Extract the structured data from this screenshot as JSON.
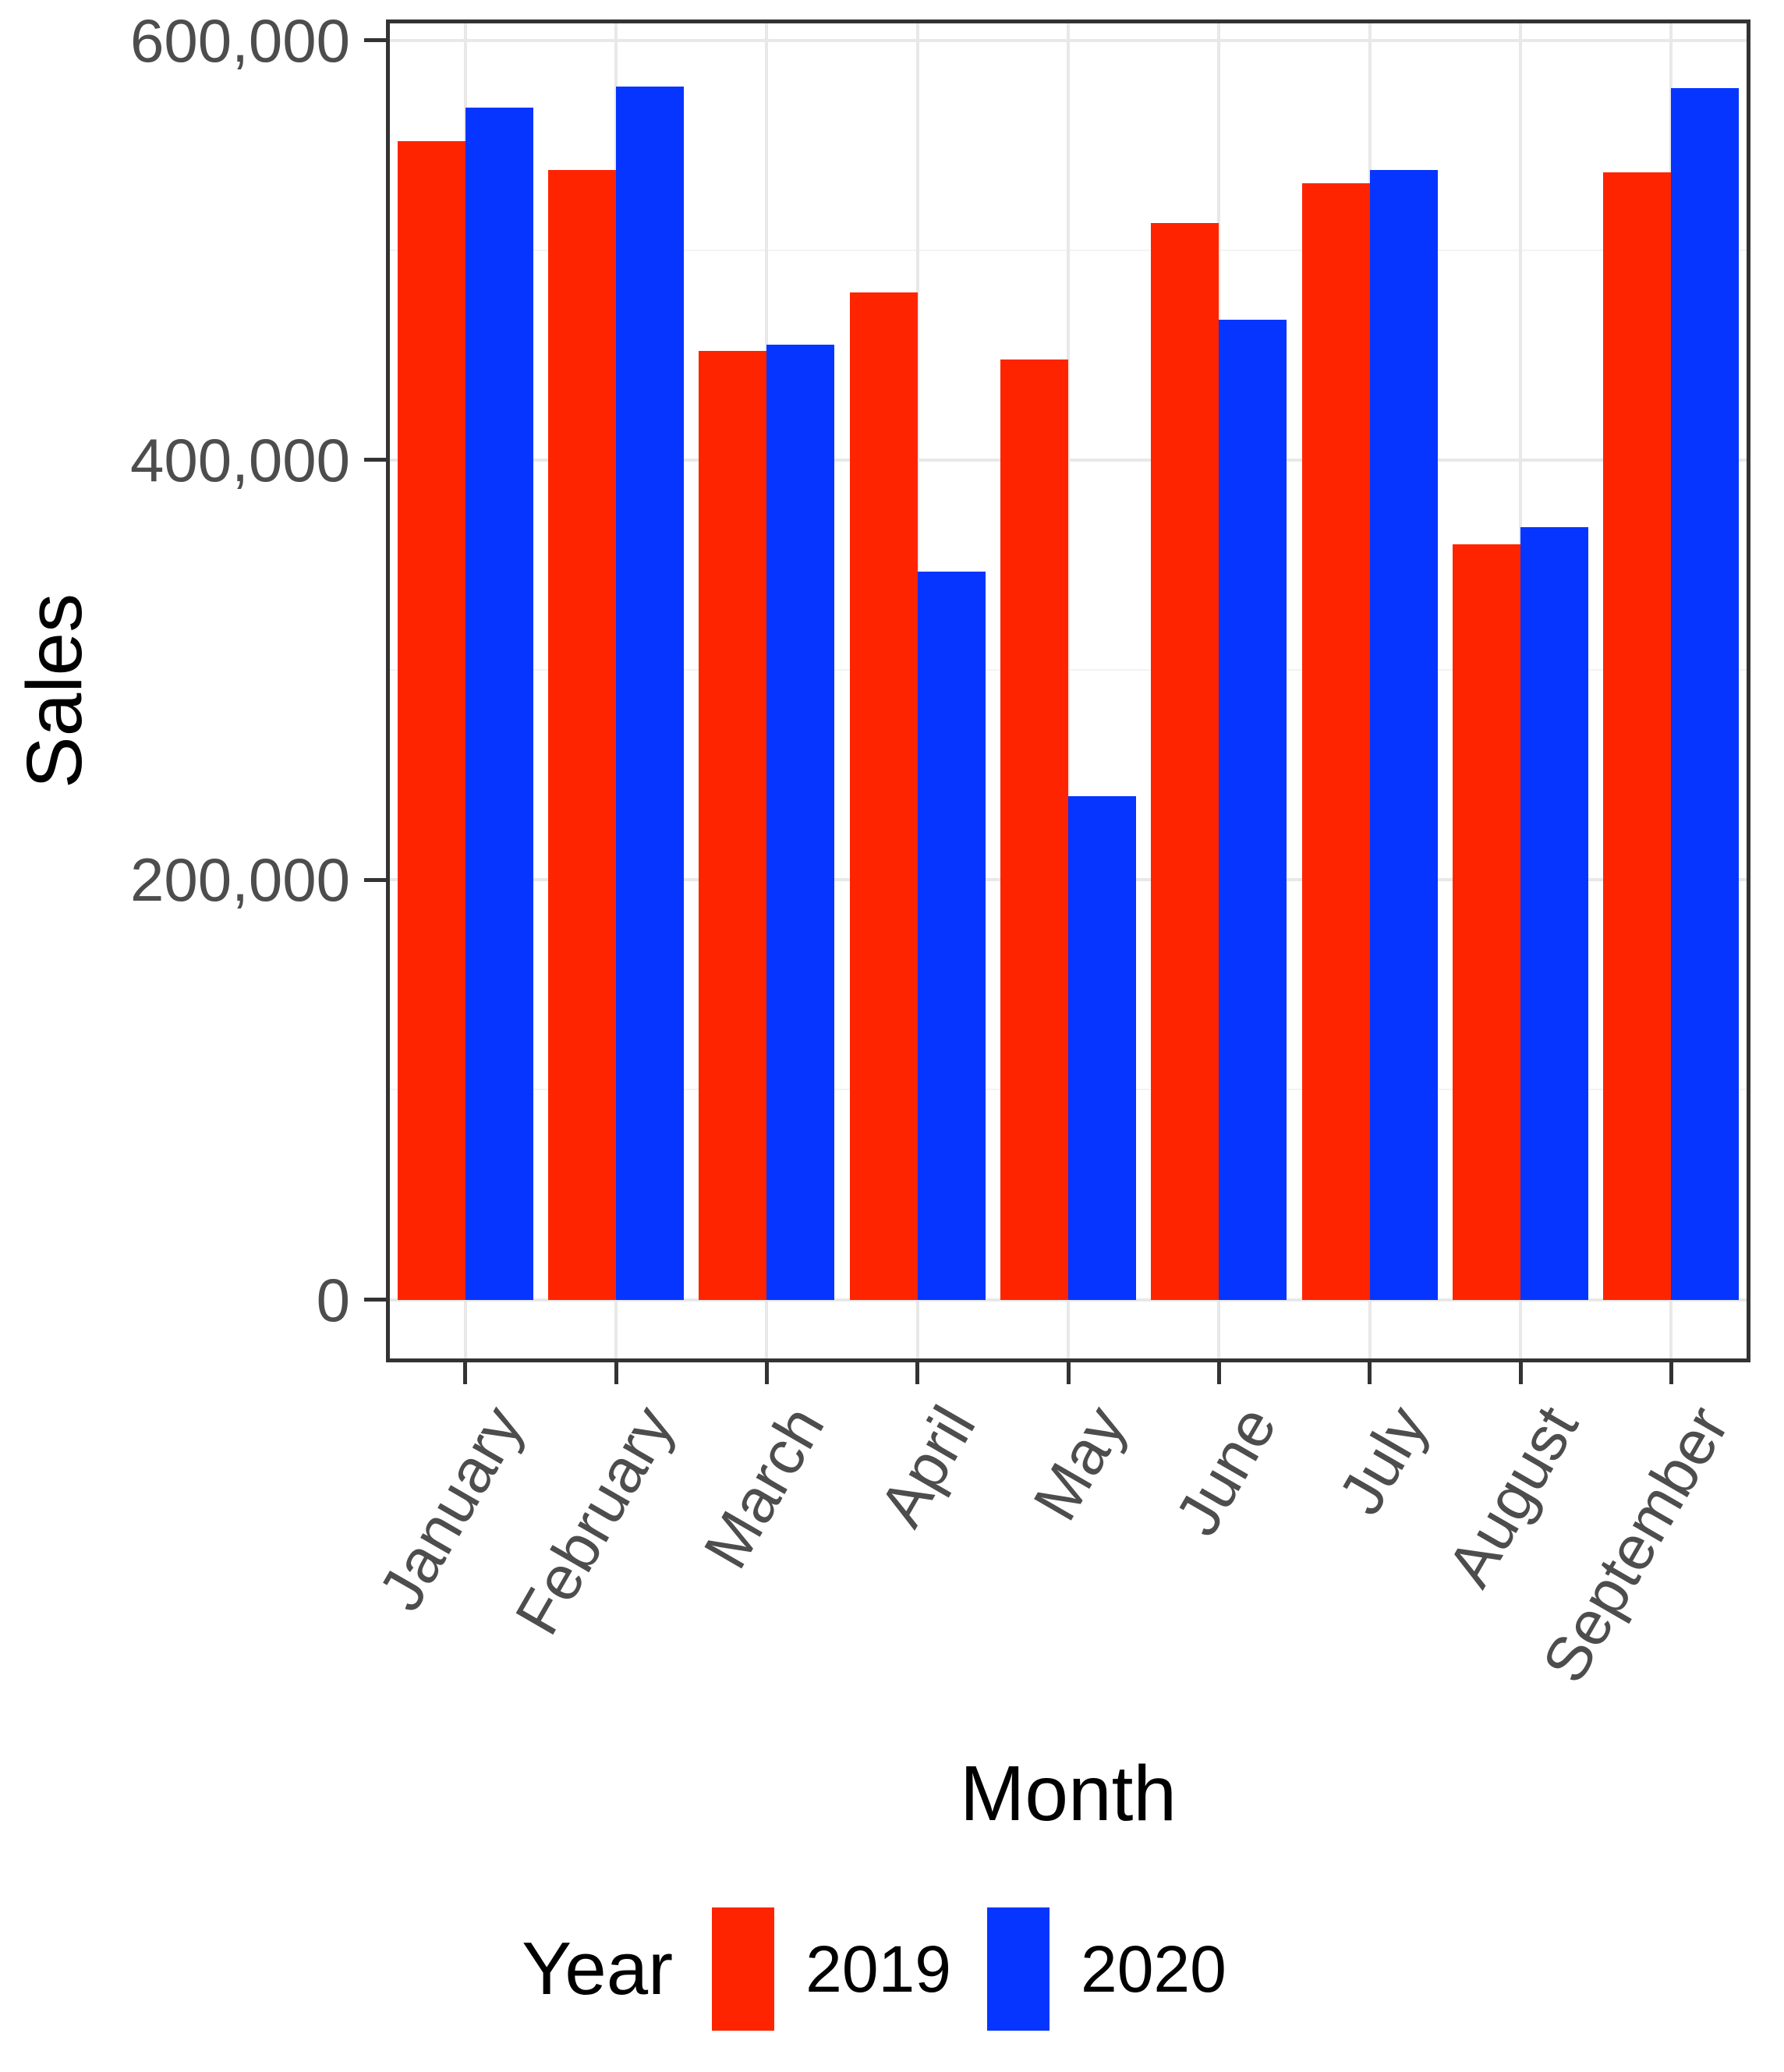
{
  "chart_data": {
    "type": "bar",
    "title": "",
    "categories": [
      "January",
      "February",
      "March",
      "April",
      "May",
      "June",
      "July",
      "August",
      "September"
    ],
    "series": [
      {
        "name": "2019",
        "color": "#FF2400",
        "values": [
          552000,
          538000,
          452000,
          480000,
          448000,
          513000,
          532000,
          360000,
          537000
        ]
      },
      {
        "name": "2020",
        "color": "#0535FF",
        "values": [
          568000,
          578000,
          455000,
          347000,
          240000,
          467000,
          538000,
          368000,
          577000
        ]
      }
    ],
    "xlabel": "Month",
    "ylabel": "Sales",
    "ylim": [
      0,
      600000
    ],
    "yticks": [
      0,
      200000,
      400000,
      600000
    ],
    "ytick_labels": [
      "0",
      "200,000",
      "400,000",
      "600,000"
    ],
    "yticks_minor": [
      100000,
      300000,
      500000
    ],
    "legend": {
      "title": "Year",
      "position": "bottom"
    },
    "layout": {
      "grid": "on",
      "bar_mode": "grouped",
      "x_label_angle_deg": 60
    },
    "colors": {
      "axis_text": "#4d4d4d",
      "axis_title": "#000000",
      "panel_border": "#333333",
      "tick_mark": "#333333",
      "grid_major": "#e8e8e8",
      "grid_minor": "#f3f3f3",
      "background": "#ffffff"
    }
  }
}
